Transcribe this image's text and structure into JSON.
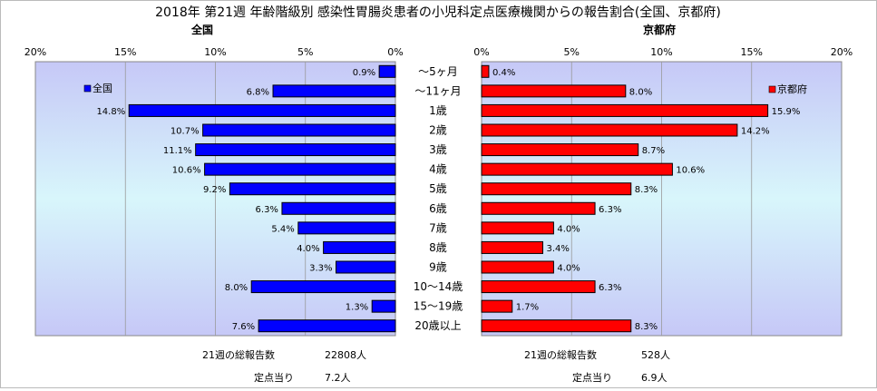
{
  "title": "2018年 第21週 年齢階級別 感染性胃腸炎患者の小児科定点医療機関からの報告割合(全国、京都府)",
  "chart_data": {
    "type": "bar",
    "orientation": "horizontal",
    "categories": [
      "～5ヶ月",
      "～11ヶ月",
      "1歳",
      "2歳",
      "3歳",
      "4歳",
      "5歳",
      "6歳",
      "7歳",
      "8歳",
      "9歳",
      "10～14歳",
      "15～19歳",
      "20歳以上"
    ],
    "xlim": [
      0,
      20
    ],
    "x_ticks": [
      "20%",
      "15%",
      "10%",
      "5%",
      "0%"
    ],
    "x_ticks_right": [
      "0%",
      "5%",
      "10%",
      "15%",
      "20%"
    ],
    "grid": true,
    "legend_placement": "top-inside",
    "series": [
      {
        "name": "全国",
        "panel_title": "全国",
        "color": "#0000ff",
        "values": [
          0.9,
          6.8,
          14.8,
          10.7,
          11.1,
          10.6,
          9.2,
          6.3,
          5.4,
          4.0,
          3.3,
          8.0,
          1.3,
          7.6
        ],
        "labels": [
          "0.9%",
          "6.8%",
          "14.8%",
          "10.7%",
          "11.1%",
          "10.6%",
          "9.2%",
          "6.3%",
          "5.4%",
          "4.0%",
          "3.3%",
          "8.0%",
          "1.3%",
          "7.6%"
        ]
      },
      {
        "name": "京都府",
        "panel_title": "京都府",
        "color": "#ff0000",
        "values": [
          0.4,
          8.0,
          15.9,
          14.2,
          8.7,
          10.6,
          8.3,
          6.3,
          4.0,
          3.4,
          4.0,
          6.3,
          1.7,
          8.3
        ],
        "labels": [
          "0.4%",
          "8.0%",
          "15.9%",
          "14.2%",
          "8.7%",
          "10.6%",
          "8.3%",
          "6.3%",
          "4.0%",
          "3.4%",
          "4.0%",
          "6.3%",
          "1.7%",
          "8.3%"
        ]
      }
    ]
  },
  "footer": {
    "left_total_label": "21週の総報告数",
    "left_total_value": "22808人",
    "left_per_label": "定点当り",
    "left_per_value": "7.2人",
    "right_total_label": "21週の総報告数",
    "right_total_value": "528人",
    "right_per_label": "定点当り",
    "right_per_value": "6.9人"
  }
}
